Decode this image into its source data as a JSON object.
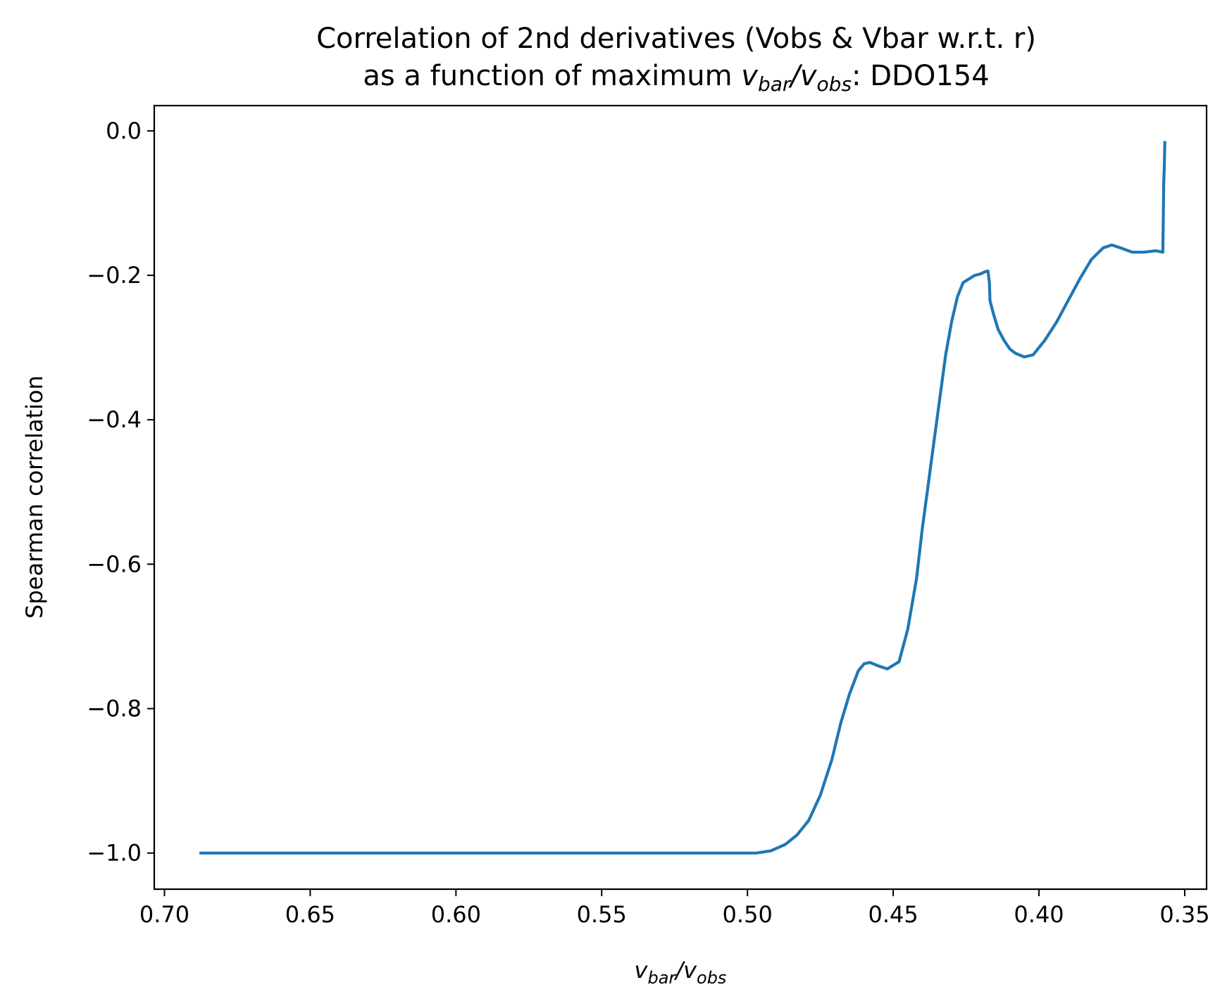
{
  "chart_data": {
    "type": "line",
    "title_line1": "Correlation of 2nd derivatives (Vobs & Vbar w.r.t. r)",
    "title_line2_prefix": "as a function of maximum ",
    "title_line2_suffix": ": DDO154",
    "xlabel": "v_bar/v_obs",
    "ylabel": "Spearman correlation",
    "xlim": [
      0.7035,
      0.3425
    ],
    "ylim": [
      -1.05,
      0.035
    ],
    "x_inverted": true,
    "grid": false,
    "legend": "none",
    "line_color": "#1f77b4",
    "xticks": [
      {
        "value": 0.7,
        "label": "0.70"
      },
      {
        "value": 0.65,
        "label": "0.65"
      },
      {
        "value": 0.6,
        "label": "0.60"
      },
      {
        "value": 0.55,
        "label": "0.55"
      },
      {
        "value": 0.5,
        "label": "0.50"
      },
      {
        "value": 0.45,
        "label": "0.45"
      },
      {
        "value": 0.4,
        "label": "0.40"
      },
      {
        "value": 0.35,
        "label": "0.35"
      }
    ],
    "yticks": [
      {
        "value": 0.0,
        "label": "0.0"
      },
      {
        "value": -0.2,
        "label": "−0.2"
      },
      {
        "value": -0.4,
        "label": "−0.4"
      },
      {
        "value": -0.6,
        "label": "−0.6"
      },
      {
        "value": -0.8,
        "label": "−0.8"
      },
      {
        "value": -1.0,
        "label": "−1.0"
      }
    ],
    "series": [
      {
        "x": [
          0.688,
          0.55,
          0.497,
          0.492,
          0.487,
          0.483,
          0.479,
          0.475,
          0.471,
          0.468,
          0.465,
          0.462,
          0.46,
          0.458,
          0.455,
          0.452,
          0.448,
          0.445,
          0.442,
          0.44,
          0.438,
          0.436,
          0.434,
          0.432,
          0.43,
          0.428,
          0.426,
          0.424,
          0.422,
          0.42,
          0.4185,
          0.4175,
          0.417,
          0.4168,
          0.4165,
          0.4155,
          0.414,
          0.412,
          0.41,
          0.408,
          0.405,
          0.402,
          0.398,
          0.394,
          0.39,
          0.386,
          0.382,
          0.378,
          0.375,
          0.372,
          0.368,
          0.364,
          0.36,
          0.3575,
          0.3572,
          0.357,
          0.3568
        ],
        "y": [
          -1.0,
          -1.0,
          -1.0,
          -0.997,
          -0.988,
          -0.975,
          -0.955,
          -0.92,
          -0.87,
          -0.82,
          -0.78,
          -0.748,
          -0.738,
          -0.736,
          -0.741,
          -0.745,
          -0.735,
          -0.69,
          -0.62,
          -0.55,
          -0.49,
          -0.43,
          -0.37,
          -0.31,
          -0.265,
          -0.23,
          -0.21,
          -0.205,
          -0.2,
          -0.198,
          -0.195,
          -0.194,
          -0.21,
          -0.235,
          -0.24,
          -0.255,
          -0.275,
          -0.29,
          -0.302,
          -0.308,
          -0.313,
          -0.31,
          -0.29,
          -0.265,
          -0.235,
          -0.205,
          -0.178,
          -0.162,
          -0.158,
          -0.162,
          -0.168,
          -0.168,
          -0.166,
          -0.168,
          -0.07,
          -0.05,
          -0.014
        ]
      }
    ]
  }
}
